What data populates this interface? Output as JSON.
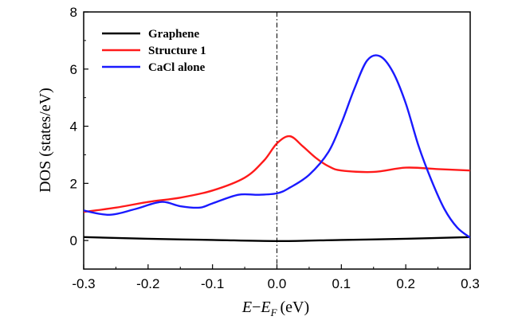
{
  "chart_data": {
    "type": "line",
    "title": "",
    "xlabel": "E−E_F (eV)",
    "xlabel_parts": {
      "e": "E",
      "dash": "−",
      "ef": "E",
      "sub": "F",
      "unit": "(eV)"
    },
    "ylabel": "DOS (states/eV)",
    "xlim": [
      -0.3,
      0.3
    ],
    "ylim": [
      -1,
      8
    ],
    "xticks": [
      -0.3,
      -0.2,
      -0.1,
      0.0,
      0.1,
      0.2,
      0.3
    ],
    "xtick_labels": [
      "-0.3",
      "-0.2",
      "-0.1",
      "0.0",
      "0.1",
      "0.2",
      "0.3"
    ],
    "yticks": [
      0,
      2,
      4,
      6,
      8
    ],
    "ytick_labels": [
      "0",
      "2",
      "4",
      "6",
      "8"
    ],
    "vline_x": 0.0,
    "legend_position": "top-left",
    "series": [
      {
        "name": "Graphene",
        "color": "#000000",
        "x": [
          -0.3,
          -0.2,
          -0.1,
          0.0,
          0.1,
          0.2,
          0.3
        ],
        "y": [
          0.12,
          0.06,
          0.02,
          -0.02,
          0.02,
          0.06,
          0.12
        ]
      },
      {
        "name": "Structure 1",
        "color": "#ff1a1a",
        "x": [
          -0.3,
          -0.25,
          -0.2,
          -0.15,
          -0.1,
          -0.05,
          -0.02,
          0.0,
          0.02,
          0.04,
          0.06,
          0.08,
          0.1,
          0.15,
          0.2,
          0.25,
          0.3
        ],
        "y": [
          1.0,
          1.15,
          1.35,
          1.5,
          1.75,
          2.2,
          2.8,
          3.4,
          3.65,
          3.3,
          2.9,
          2.6,
          2.45,
          2.4,
          2.55,
          2.5,
          2.45
        ]
      },
      {
        "name": "CaCl alone",
        "color": "#1a1aff",
        "x": [
          -0.3,
          -0.26,
          -0.22,
          -0.18,
          -0.15,
          -0.12,
          -0.1,
          -0.06,
          -0.03,
          0.0,
          0.02,
          0.05,
          0.08,
          0.1,
          0.12,
          0.14,
          0.16,
          0.18,
          0.2,
          0.22,
          0.24,
          0.26,
          0.28,
          0.3
        ],
        "y": [
          1.05,
          0.9,
          1.1,
          1.35,
          1.2,
          1.15,
          1.3,
          1.6,
          1.6,
          1.65,
          1.85,
          2.3,
          3.1,
          4.1,
          5.3,
          6.3,
          6.45,
          5.9,
          4.8,
          3.3,
          2.1,
          1.1,
          0.45,
          0.1
        ]
      }
    ]
  }
}
